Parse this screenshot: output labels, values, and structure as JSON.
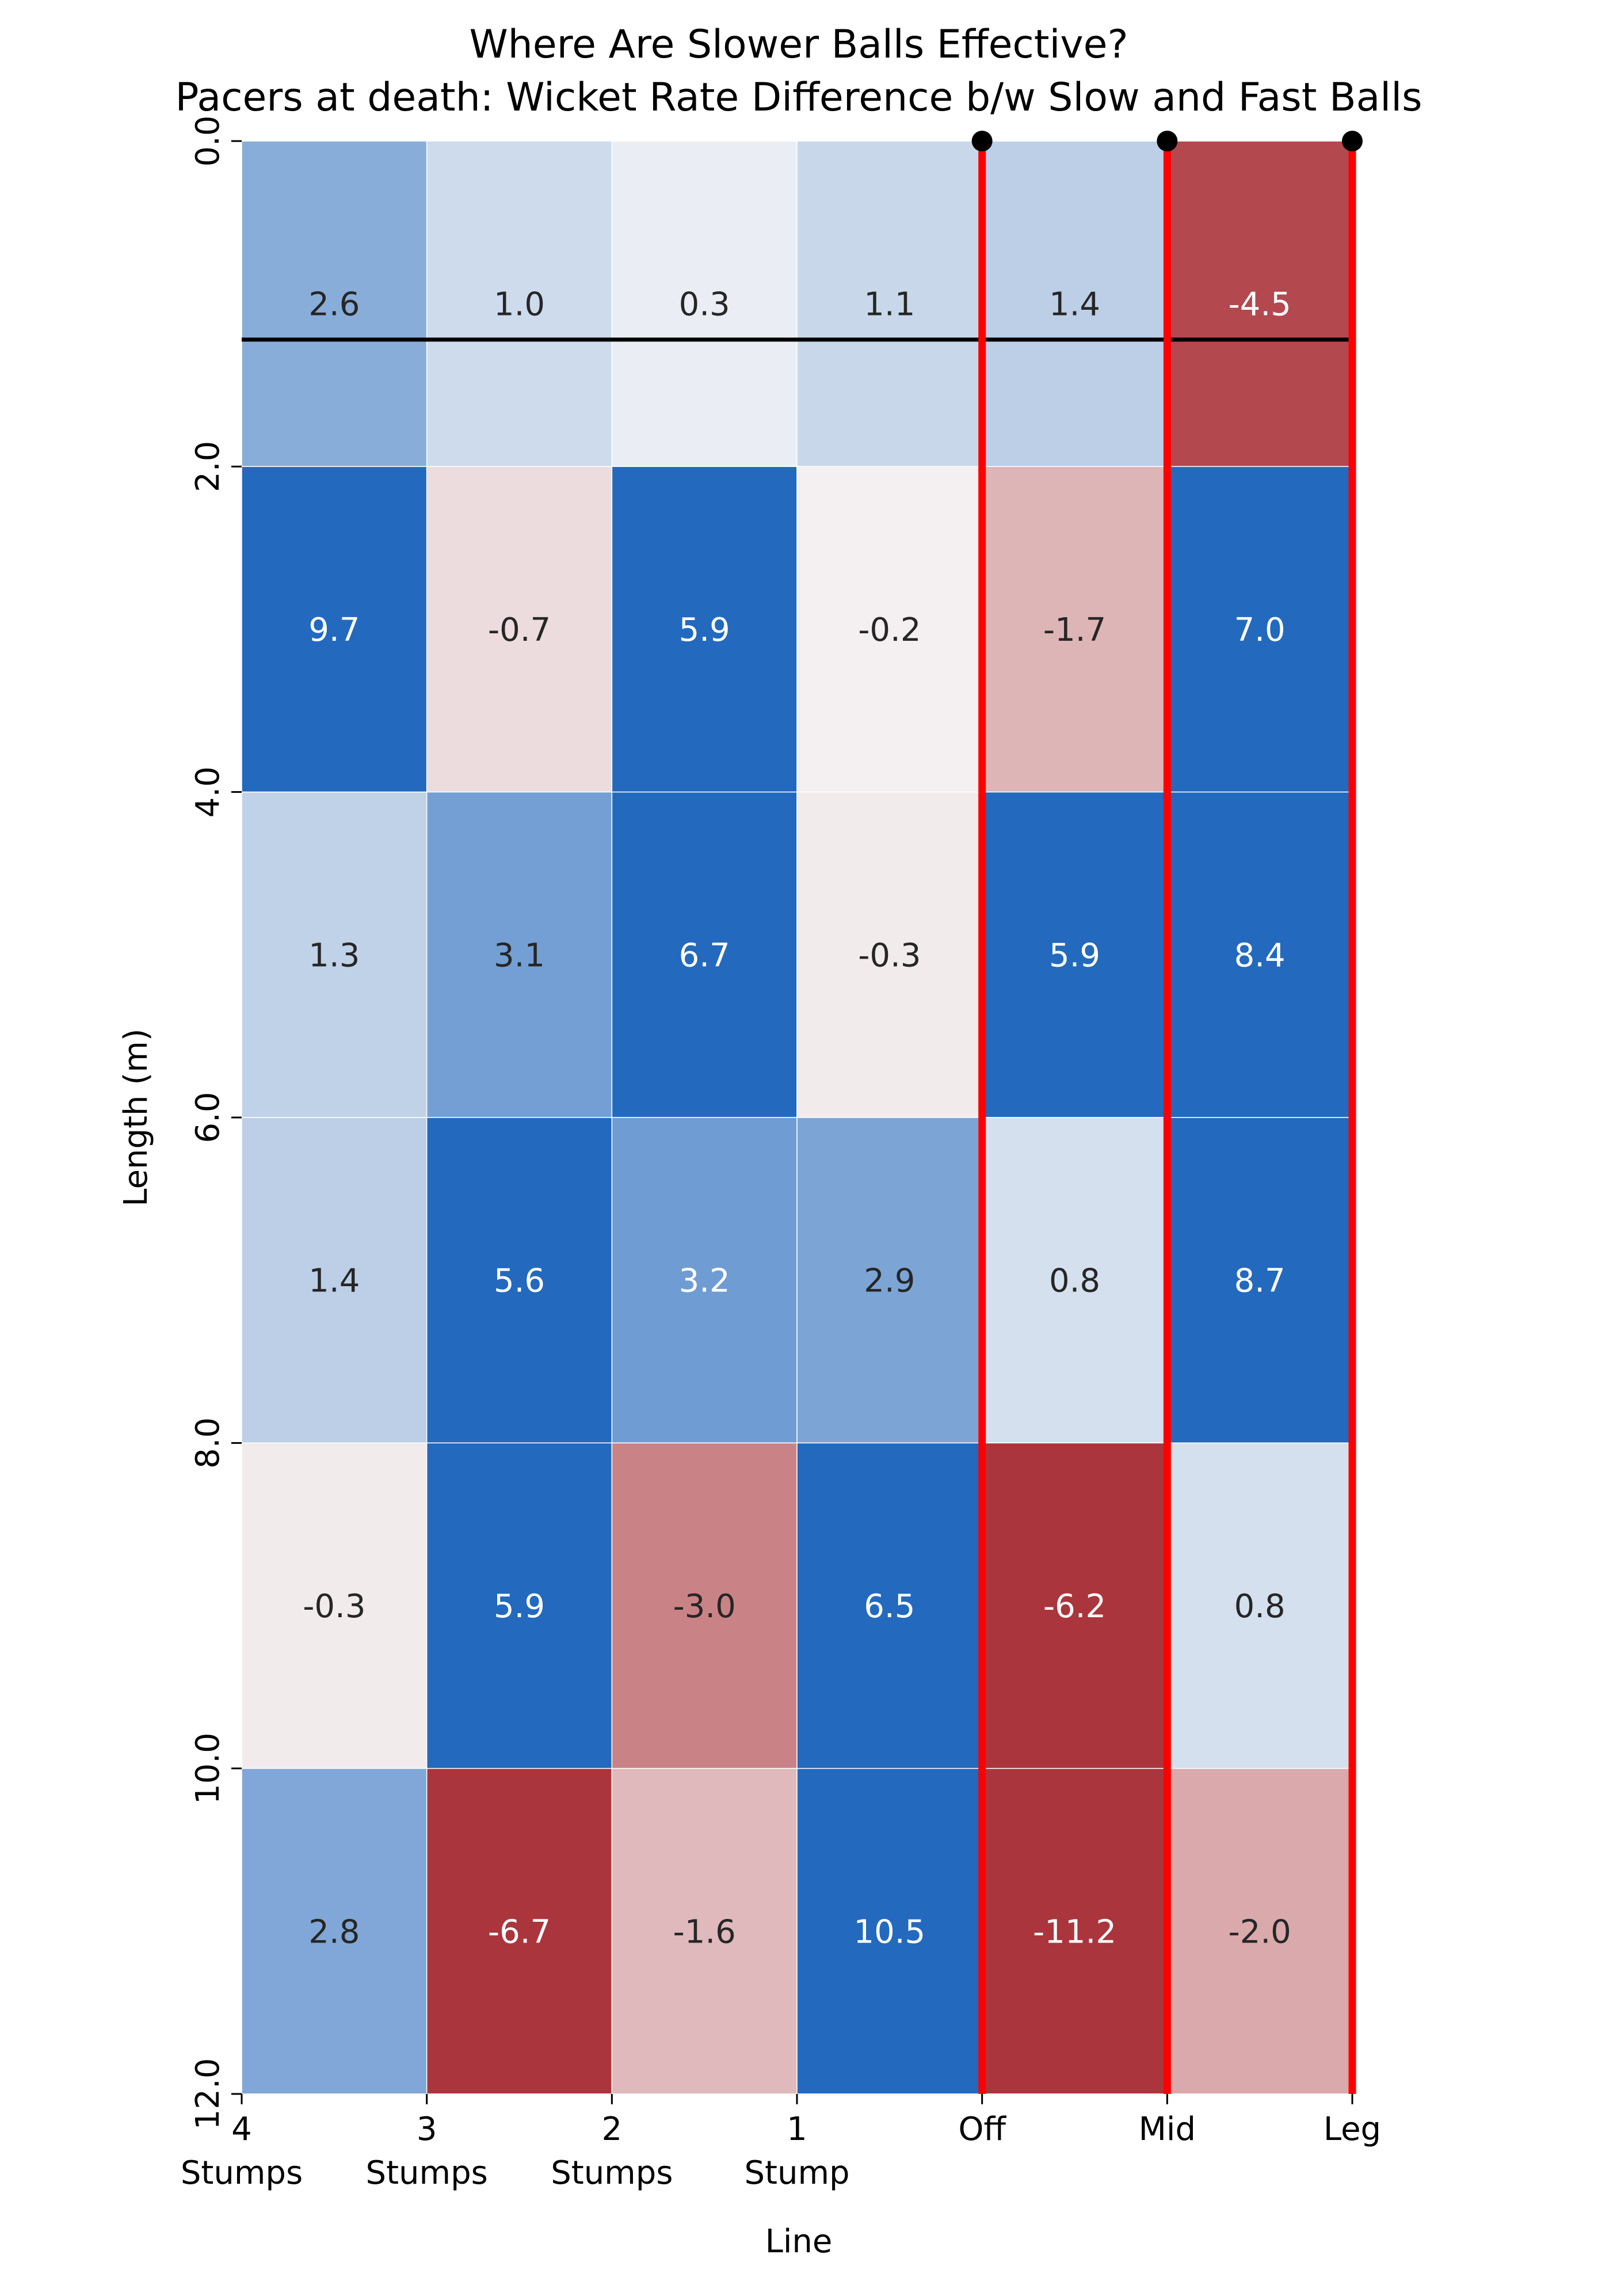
{
  "chart_data": {
    "type": "heatmap",
    "title": "Where Are Slower Balls Effective?",
    "subtitle": "Pacers at death: Wicket Rate Difference b/w Slow and Fast Balls",
    "xlabel": "Line",
    "ylabel": "Length (m)",
    "x_tick_labels": [
      [
        "4",
        "Stumps"
      ],
      [
        "3",
        "Stumps"
      ],
      [
        "2",
        "Stumps"
      ],
      [
        "1",
        "Stump"
      ],
      [
        "Off"
      ],
      [
        "Mid"
      ],
      [
        "Leg"
      ]
    ],
    "y_tick_labels": [
      "0.0",
      "2.0",
      "4.0",
      "6.0",
      "8.0",
      "10.0",
      "12.0"
    ],
    "y_ticks": [
      0,
      2,
      4,
      6,
      8,
      10,
      12
    ],
    "ylim": [
      0,
      12
    ],
    "cell_height_m": 2,
    "values": [
      [
        2.6,
        1.0,
        0.3,
        1.1,
        1.4,
        -4.5
      ],
      [
        9.7,
        -0.7,
        5.9,
        -0.2,
        -1.7,
        7.0
      ],
      [
        1.3,
        3.1,
        6.7,
        -0.3,
        5.9,
        8.4
      ],
      [
        1.4,
        5.6,
        3.2,
        2.9,
        0.8,
        8.7
      ],
      [
        -0.3,
        5.9,
        -3.0,
        6.5,
        -6.2,
        0.8
      ],
      [
        2.8,
        -6.7,
        -1.6,
        10.5,
        -11.2,
        -2.0
      ]
    ],
    "color_scale": {
      "negative": "#ab353c",
      "neutral": "#f7f7f7",
      "positive": "#2369be",
      "saturation_at": 5
    },
    "colors": {
      "stump_lines": "#ff0000",
      "crease_line": "#000000",
      "cell_text_light": "#ffffff",
      "cell_text_dark": "#262626"
    },
    "stump_line_positions": [
      4,
      5,
      6
    ],
    "crease_line_length": 1.22,
    "legend": "none",
    "grid": false
  }
}
